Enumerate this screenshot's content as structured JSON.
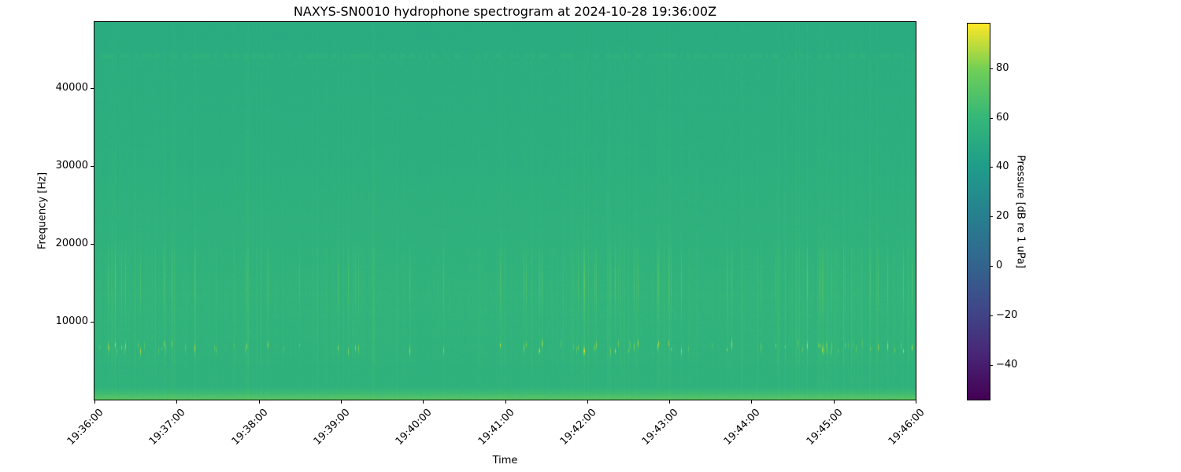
{
  "chart_data": {
    "type": "heatmap",
    "subtype": "hydrophone-spectrogram",
    "title": "NAXYS-SN0010 hydrophone spectrogram at 2024-10-28 19:36:00Z",
    "xlabel": "Time",
    "ylabel": "Frequency [Hz]",
    "x_tick_labels": [
      "19:36:00",
      "19:37:00",
      "19:38:00",
      "19:39:00",
      "19:40:00",
      "19:41:00",
      "19:42:00",
      "19:43:00",
      "19:44:00",
      "19:45:00",
      "19:46:00"
    ],
    "x_range": {
      "start": "19:36:00",
      "end": "19:46:00",
      "duration_seconds": 600
    },
    "y_tick_labels": [
      "10000",
      "20000",
      "30000",
      "40000"
    ],
    "y_tick_values": [
      10000,
      20000,
      30000,
      40000
    ],
    "freq_range_hz": [
      0,
      48500
    ],
    "grid": false,
    "colormap": "viridis",
    "colormap_stops": [
      "#440154",
      "#482878",
      "#3e4a89",
      "#31688e",
      "#26828e",
      "#1f9e89",
      "#35b779",
      "#6ece58",
      "#fde725"
    ],
    "colorbar": {
      "label": "Pressure [dB re 1 uPa]",
      "tick_labels": [
        "80",
        "60",
        "40",
        "20",
        "0",
        "−20",
        "−40"
      ],
      "tick_values": [
        80,
        60,
        40,
        20,
        0,
        -20,
        -40
      ],
      "value_range_db": [
        -54,
        98
      ],
      "position": "right"
    },
    "background_profile_db": [
      {
        "freq_hz": 0,
        "level": 73.0
      },
      {
        "freq_hz": 300,
        "level": 69.0
      },
      {
        "freq_hz": 700,
        "level": 64.0
      },
      {
        "freq_hz": 1600,
        "level": 56.2
      },
      {
        "freq_hz": 4500,
        "level": 56.2
      },
      {
        "freq_hz": 8500,
        "level": 56.6
      },
      {
        "freq_hz": 13500,
        "level": 57.2
      },
      {
        "freq_hz": 19500,
        "level": 56.0
      },
      {
        "freq_hz": 30000,
        "level": 53.8
      },
      {
        "freq_hz": 43800,
        "level": 52.8
      },
      {
        "freq_hz": 44700,
        "level": 51.6
      },
      {
        "freq_hz": 48500,
        "level": 51.2
      }
    ],
    "features": [
      {
        "name": "noise-floor",
        "freq_hz": [
          0,
          48500
        ],
        "level_db": [
          52,
          57
        ],
        "pattern": "uniform green field with fine vertical striation"
      },
      {
        "name": "low-frequency-broadband-band",
        "freq_hz": [
          0,
          1500
        ],
        "level_db": [
          60,
          73
        ],
        "pattern": "bright yellow-green band along bottom edge"
      },
      {
        "name": "impulsive-click-train",
        "freq_hz": [
          5900,
          7400
        ],
        "peak_level_db": 88,
        "pattern": "short bright dashes clustered in time across whole record"
      },
      {
        "name": "broadband-vertical-transients",
        "freq_hz": [
          4000,
          19500
        ],
        "level_db": [
          58,
          64
        ],
        "pattern": "brighter vertical streaks aligned with clicks"
      },
      {
        "name": "faint-tonal-line",
        "freq_hz": [
          43900,
          44500
        ],
        "level_db": 55,
        "pattern": "faint dotted horizontal line near top"
      }
    ]
  }
}
